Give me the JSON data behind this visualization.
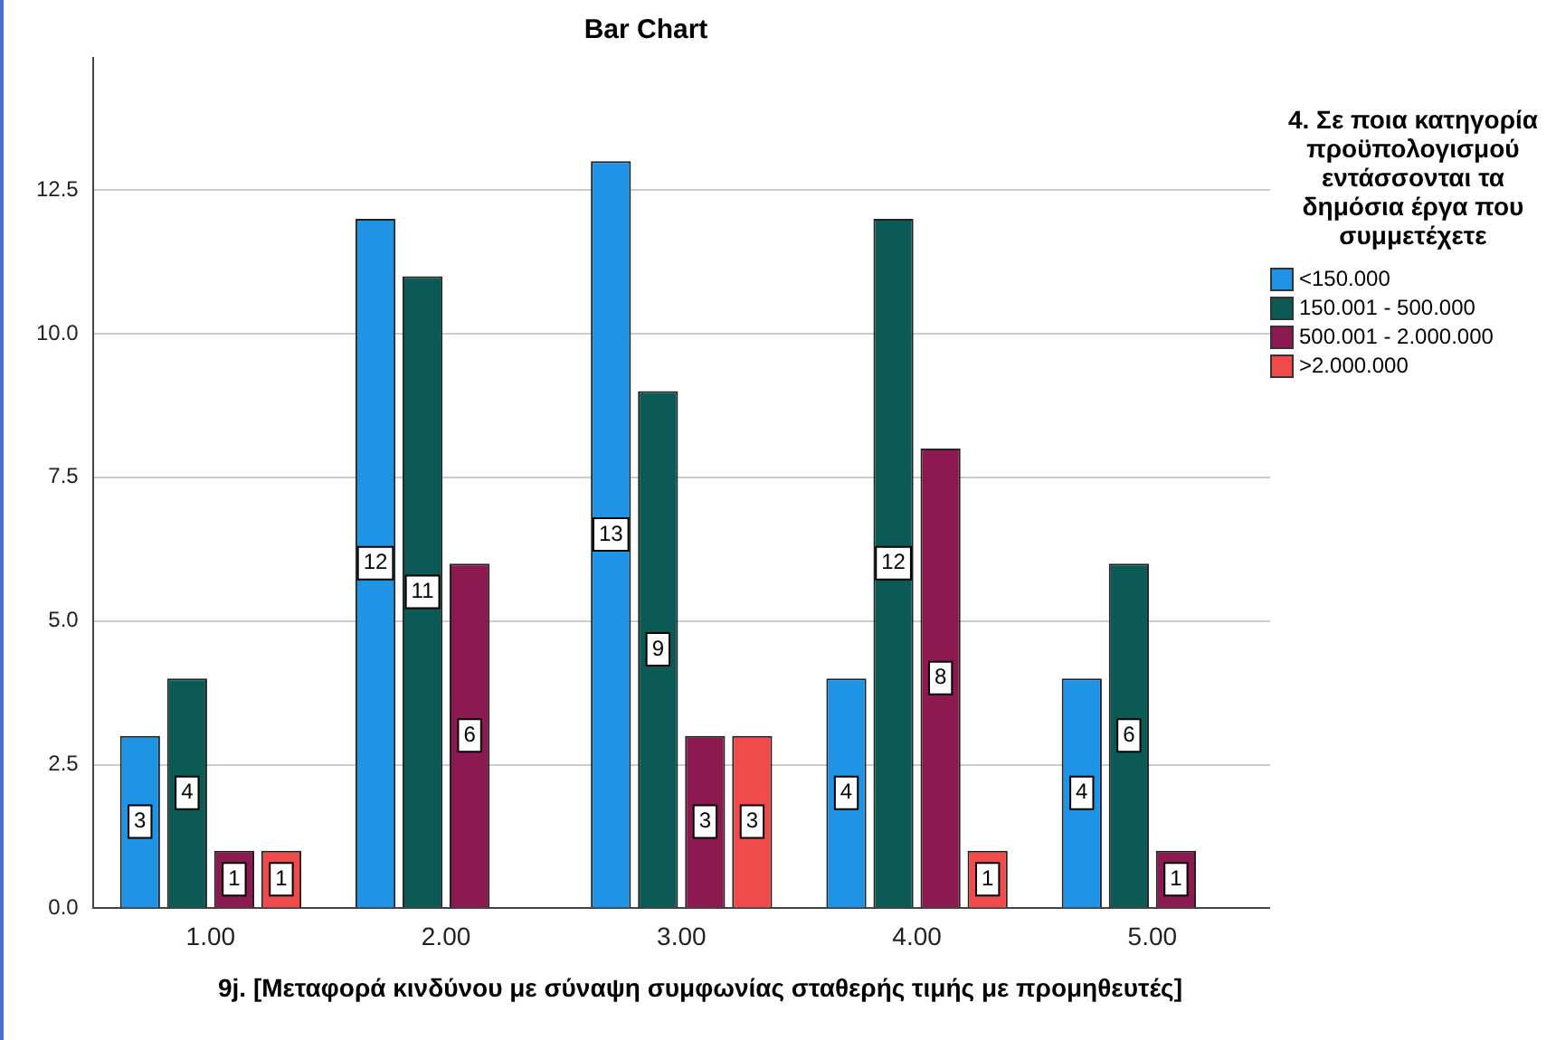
{
  "chart_data": {
    "type": "bar",
    "title": "Bar Chart",
    "xlabel": "9j.  [Μεταφορά κινδύνου με σύναψη συμφωνίας σταθερής τιμής με προμηθευτές]",
    "legend_title": "4. Σε ποια κατηγορία προϋπολογισμού εντάσσονται τα δημόσια έργα που συμμετέχετε",
    "categories": [
      "1.00",
      "2.00",
      "3.00",
      "4.00",
      "5.00"
    ],
    "series": [
      {
        "name": "<150.000",
        "color": "#1f93e6",
        "values": [
          3,
          12,
          13,
          4,
          4
        ]
      },
      {
        "name": "150.001 - 500.000",
        "color": "#0b5a55",
        "values": [
          4,
          11,
          9,
          12,
          6
        ]
      },
      {
        "name": "500.001 - 2.000.000",
        "color": "#8c1a50",
        "values": [
          1,
          6,
          3,
          8,
          1
        ]
      },
      {
        "name": ">2.000.000",
        "color": "#f04a4a",
        "values": [
          1,
          null,
          3,
          1,
          null
        ]
      }
    ],
    "ylim": [
      0,
      14.8
    ],
    "yticks": [
      {
        "value": 0,
        "label": "0.0"
      },
      {
        "value": 2.5,
        "label": "2.5"
      },
      {
        "value": 5,
        "label": "5.0"
      },
      {
        "value": 7.5,
        "label": "7.5"
      },
      {
        "value": 10,
        "label": "10.0"
      },
      {
        "value": 12.5,
        "label": "12.5"
      }
    ],
    "grid": "y",
    "legend": "right",
    "data_labels": true
  }
}
